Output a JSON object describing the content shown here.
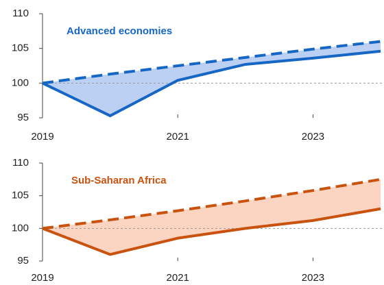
{
  "chart_data": [
    {
      "type": "line",
      "title": "Advanced economies",
      "x": [
        2019,
        2020,
        2021,
        2022,
        2023,
        2024
      ],
      "series": [
        {
          "color": "#1666c5",
          "dashed": false,
          "values": [
            100,
            95.3,
            100.4,
            102.7,
            103.6,
            104.6
          ]
        },
        {
          "color": "#1666c5",
          "dashed": true,
          "values": [
            100,
            101.3,
            102.5,
            103.7,
            104.9,
            106.0
          ]
        }
      ],
      "fill_color": "#bcd0f4",
      "reference_line": 100,
      "xlim": [
        2019,
        2024.05
      ],
      "xticks": [
        2019,
        2021,
        2023
      ],
      "ylim": [
        95,
        110
      ],
      "yticks": [
        95,
        100,
        105,
        110
      ]
    },
    {
      "type": "line",
      "title": "Sub-Saharan Africa",
      "x": [
        2019,
        2020,
        2021,
        2022,
        2023,
        2024
      ],
      "series": [
        {
          "color": "#c8520e",
          "dashed": false,
          "values": [
            100,
            96.0,
            98.5,
            100.0,
            101.2,
            103.0
          ]
        },
        {
          "color": "#c8520e",
          "dashed": true,
          "values": [
            100,
            101.3,
            102.7,
            104.2,
            105.8,
            107.5
          ]
        }
      ],
      "fill_color": "#fcd5c2",
      "reference_line": 100,
      "xlim": [
        2019,
        2024.05
      ],
      "xticks": [
        2019,
        2021,
        2023
      ],
      "ylim": [
        95,
        110
      ],
      "yticks": [
        95,
        100,
        105,
        110
      ]
    }
  ]
}
